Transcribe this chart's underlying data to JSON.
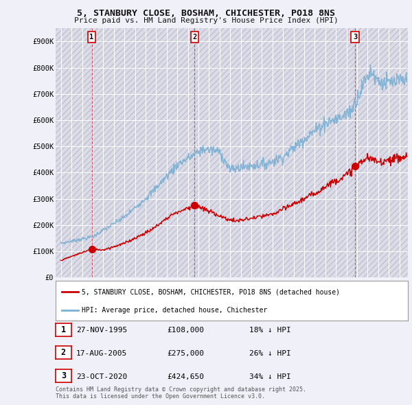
{
  "title": "5, STANBURY CLOSE, BOSHAM, CHICHESTER, PO18 8NS",
  "subtitle": "Price paid vs. HM Land Registry's House Price Index (HPI)",
  "ylim": [
    0,
    950000
  ],
  "yticks": [
    0,
    100000,
    200000,
    300000,
    400000,
    500000,
    600000,
    700000,
    800000,
    900000
  ],
  "ytick_labels": [
    "£0",
    "£100K",
    "£200K",
    "£300K",
    "£400K",
    "£500K",
    "£600K",
    "£700K",
    "£800K",
    "£900K"
  ],
  "xlim_start": 1992.5,
  "xlim_end": 2025.8,
  "xticks": [
    1993,
    1994,
    1995,
    1996,
    1997,
    1998,
    1999,
    2000,
    2001,
    2002,
    2003,
    2004,
    2005,
    2006,
    2007,
    2008,
    2009,
    2010,
    2011,
    2012,
    2013,
    2014,
    2015,
    2016,
    2017,
    2018,
    2019,
    2020,
    2021,
    2022,
    2023,
    2024,
    2025
  ],
  "hatch_color": "#d0d0e0",
  "fig_bg": "#f0f0f8",
  "grid_color": "#ffffff",
  "red_color": "#cc0000",
  "blue_color": "#7ab0d4",
  "purchase_dates": [
    1995.91,
    2005.63,
    2020.81
  ],
  "purchase_prices": [
    108000,
    275000,
    424650
  ],
  "purchase_labels": [
    "1",
    "2",
    "3"
  ],
  "legend_red": "5, STANBURY CLOSE, BOSHAM, CHICHESTER, PO18 8NS (detached house)",
  "legend_blue": "HPI: Average price, detached house, Chichester",
  "table_data": [
    [
      "1",
      "27-NOV-1995",
      "£108,000",
      "18% ↓ HPI"
    ],
    [
      "2",
      "17-AUG-2005",
      "£275,000",
      "26% ↓ HPI"
    ],
    [
      "3",
      "23-OCT-2020",
      "£424,650",
      "34% ↓ HPI"
    ]
  ],
  "footer": "Contains HM Land Registry data © Crown copyright and database right 2025.\nThis data is licensed under the Open Government Licence v3.0."
}
